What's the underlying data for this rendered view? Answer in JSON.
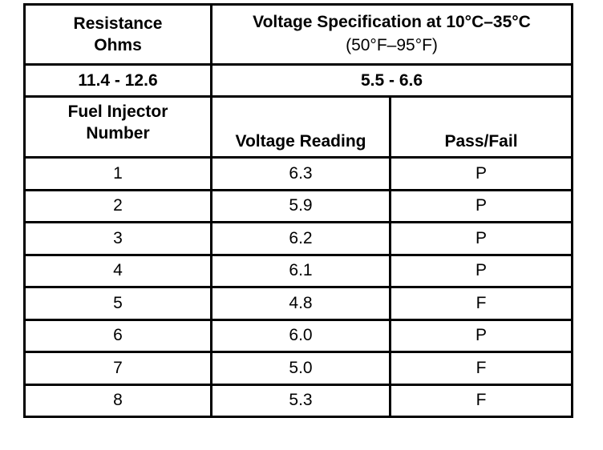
{
  "table": {
    "header": {
      "resistance": "Resistance Ohms",
      "voltage_spec_title": "Voltage Specification at 10°C–35°C",
      "voltage_spec_sub": "(50°F–95°F)"
    },
    "spec_row": {
      "resistance": "11.4 - 12.6",
      "voltage": "5.5 - 6.6"
    },
    "columns": [
      "Fuel Injector Number",
      "Voltage Reading",
      "Pass/Fail"
    ],
    "rows": [
      [
        "1",
        "6.3",
        "P"
      ],
      [
        "2",
        "5.9",
        "P"
      ],
      [
        "3",
        "6.2",
        "P"
      ],
      [
        "4",
        "6.1",
        "P"
      ],
      [
        "5",
        "4.8",
        "F"
      ],
      [
        "6",
        "6.0",
        "P"
      ],
      [
        "7",
        "5.0",
        "F"
      ],
      [
        "8",
        "5.3",
        "F"
      ]
    ]
  }
}
